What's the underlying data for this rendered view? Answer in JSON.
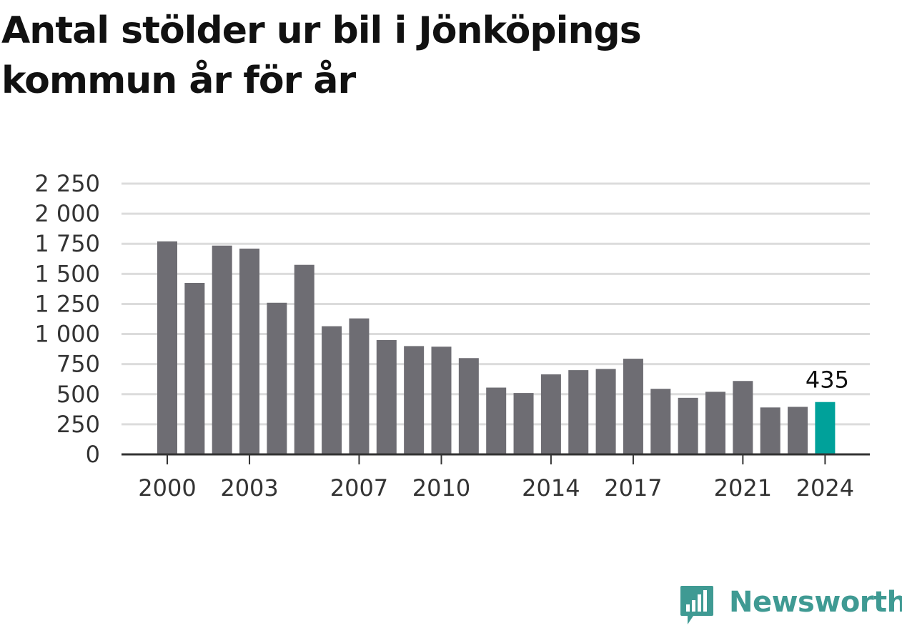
{
  "chart_data": {
    "type": "bar",
    "title": "Antal stölder ur bil i Jönköpings kommun år för år",
    "categories": [
      "2000",
      "2001",
      "2002",
      "2003",
      "2004",
      "2005",
      "2006",
      "2007",
      "2008",
      "2009",
      "2010",
      "2011",
      "2012",
      "2013",
      "2014",
      "2015",
      "2016",
      "2017",
      "2018",
      "2019",
      "2020",
      "2021",
      "2022",
      "2023",
      "2024"
    ],
    "values": [
      1770,
      1425,
      1735,
      1710,
      1260,
      1575,
      1065,
      1130,
      950,
      900,
      895,
      800,
      555,
      510,
      665,
      700,
      710,
      795,
      545,
      470,
      520,
      610,
      390,
      395,
      435
    ],
    "x_tick_labels": [
      "2000",
      "2003",
      "2007",
      "2010",
      "2014",
      "2017",
      "2021",
      "2024"
    ],
    "y_tick_labels": [
      "0",
      "250",
      "500",
      "750",
      "1 000",
      "1 250",
      "1 500",
      "1 750",
      "2 000",
      "2 250"
    ],
    "ylim": [
      0,
      2250
    ],
    "grid": true,
    "highlight": {
      "category": "2024",
      "label": "435"
    },
    "colors": {
      "bar": "#6e6d73",
      "highlight": "#00a19a",
      "grid": "#dcdcdc",
      "axis": "#333333"
    }
  },
  "brand": {
    "name": "Newsworthy",
    "color": "#3f9a93"
  }
}
